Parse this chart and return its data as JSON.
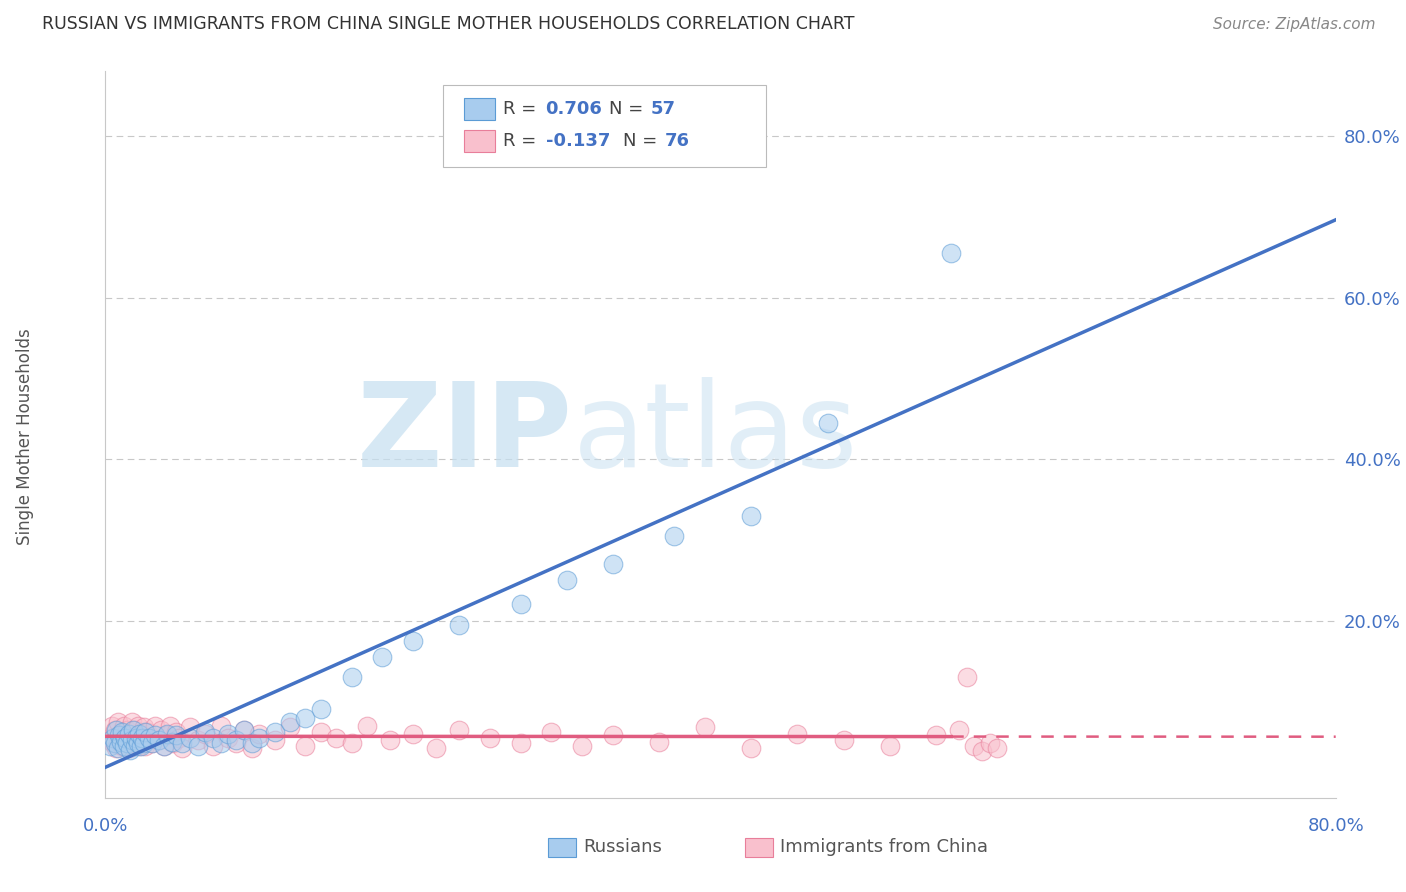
{
  "title": "RUSSIAN VS IMMIGRANTS FROM CHINA SINGLE MOTHER HOUSEHOLDS CORRELATION CHART",
  "source": "Source: ZipAtlas.com",
  "ylabel": "Single Mother Households",
  "ytick_vals": [
    0.0,
    0.2,
    0.4,
    0.6,
    0.8
  ],
  "ytick_labels": [
    "0.0%",
    "20.0%",
    "40.0%",
    "60.0%",
    "80.0%"
  ],
  "xtick_left": "0.0%",
  "xtick_right": "80.0%",
  "xrange": [
    0.0,
    0.8
  ],
  "yrange": [
    -0.02,
    0.88
  ],
  "legend_r1": "R = 0.706",
  "legend_n1": "N = 57",
  "legend_r2": "R = -0.137",
  "legend_n2": "N = 76",
  "legend_label1": "Russians",
  "legend_label2": "Immigrants from China",
  "color_russian_fill": "#A8CCEE",
  "color_russian_edge": "#5B9BD5",
  "color_russian_line": "#4472C4",
  "color_china_fill": "#F9C0CD",
  "color_china_edge": "#E87E9A",
  "color_china_line": "#E05C80",
  "watermark_zip": "ZIP",
  "watermark_atlas": "atlas",
  "background_color": "#FFFFFF",
  "grid_color": "#C8C8C8",
  "russian_x": [
    0.003,
    0.005,
    0.006,
    0.007,
    0.008,
    0.009,
    0.01,
    0.011,
    0.012,
    0.013,
    0.014,
    0.015,
    0.016,
    0.017,
    0.018,
    0.019,
    0.02,
    0.021,
    0.022,
    0.023,
    0.024,
    0.025,
    0.026,
    0.028,
    0.03,
    0.032,
    0.035,
    0.038,
    0.04,
    0.043,
    0.046,
    0.05,
    0.055,
    0.06,
    0.065,
    0.07,
    0.075,
    0.08,
    0.085,
    0.09,
    0.095,
    0.1,
    0.11,
    0.12,
    0.13,
    0.14,
    0.16,
    0.18,
    0.2,
    0.23,
    0.27,
    0.3,
    0.33,
    0.37,
    0.42,
    0.47,
    0.55
  ],
  "russian_y": [
    0.045,
    0.055,
    0.048,
    0.065,
    0.042,
    0.058,
    0.05,
    0.062,
    0.045,
    0.055,
    0.048,
    0.06,
    0.04,
    0.052,
    0.065,
    0.045,
    0.055,
    0.048,
    0.06,
    0.045,
    0.055,
    0.048,
    0.062,
    0.055,
    0.048,
    0.058,
    0.052,
    0.045,
    0.06,
    0.05,
    0.058,
    0.048,
    0.055,
    0.045,
    0.062,
    0.055,
    0.048,
    0.06,
    0.052,
    0.065,
    0.048,
    0.055,
    0.062,
    0.075,
    0.08,
    0.09,
    0.13,
    0.155,
    0.175,
    0.195,
    0.22,
    0.25,
    0.27,
    0.305,
    0.33,
    0.445,
    0.655
  ],
  "china_x": [
    0.003,
    0.004,
    0.005,
    0.006,
    0.007,
    0.008,
    0.009,
    0.01,
    0.011,
    0.012,
    0.013,
    0.014,
    0.015,
    0.016,
    0.017,
    0.018,
    0.019,
    0.02,
    0.021,
    0.022,
    0.023,
    0.024,
    0.025,
    0.026,
    0.027,
    0.028,
    0.03,
    0.032,
    0.034,
    0.036,
    0.038,
    0.04,
    0.042,
    0.044,
    0.046,
    0.048,
    0.05,
    0.055,
    0.06,
    0.065,
    0.07,
    0.075,
    0.08,
    0.085,
    0.09,
    0.095,
    0.1,
    0.11,
    0.12,
    0.13,
    0.14,
    0.15,
    0.16,
    0.17,
    0.185,
    0.2,
    0.215,
    0.23,
    0.25,
    0.27,
    0.29,
    0.31,
    0.33,
    0.36,
    0.39,
    0.42,
    0.45,
    0.48,
    0.51,
    0.54,
    0.555,
    0.56,
    0.565,
    0.57,
    0.575,
    0.58
  ],
  "china_y": [
    0.055,
    0.07,
    0.048,
    0.065,
    0.042,
    0.075,
    0.052,
    0.06,
    0.045,
    0.07,
    0.055,
    0.065,
    0.042,
    0.058,
    0.075,
    0.048,
    0.065,
    0.055,
    0.07,
    0.045,
    0.06,
    0.052,
    0.068,
    0.045,
    0.062,
    0.055,
    0.048,
    0.07,
    0.052,
    0.065,
    0.045,
    0.058,
    0.07,
    0.048,
    0.062,
    0.055,
    0.042,
    0.068,
    0.052,
    0.06,
    0.045,
    0.07,
    0.055,
    0.048,
    0.065,
    0.042,
    0.06,
    0.052,
    0.068,
    0.045,
    0.062,
    0.055,
    0.048,
    0.07,
    0.052,
    0.06,
    0.042,
    0.065,
    0.055,
    0.048,
    0.062,
    0.045,
    0.058,
    0.05,
    0.068,
    0.042,
    0.06,
    0.052,
    0.045,
    0.058,
    0.065,
    0.13,
    0.045,
    0.038,
    0.048,
    0.042
  ],
  "china_line_end_x": 0.55
}
